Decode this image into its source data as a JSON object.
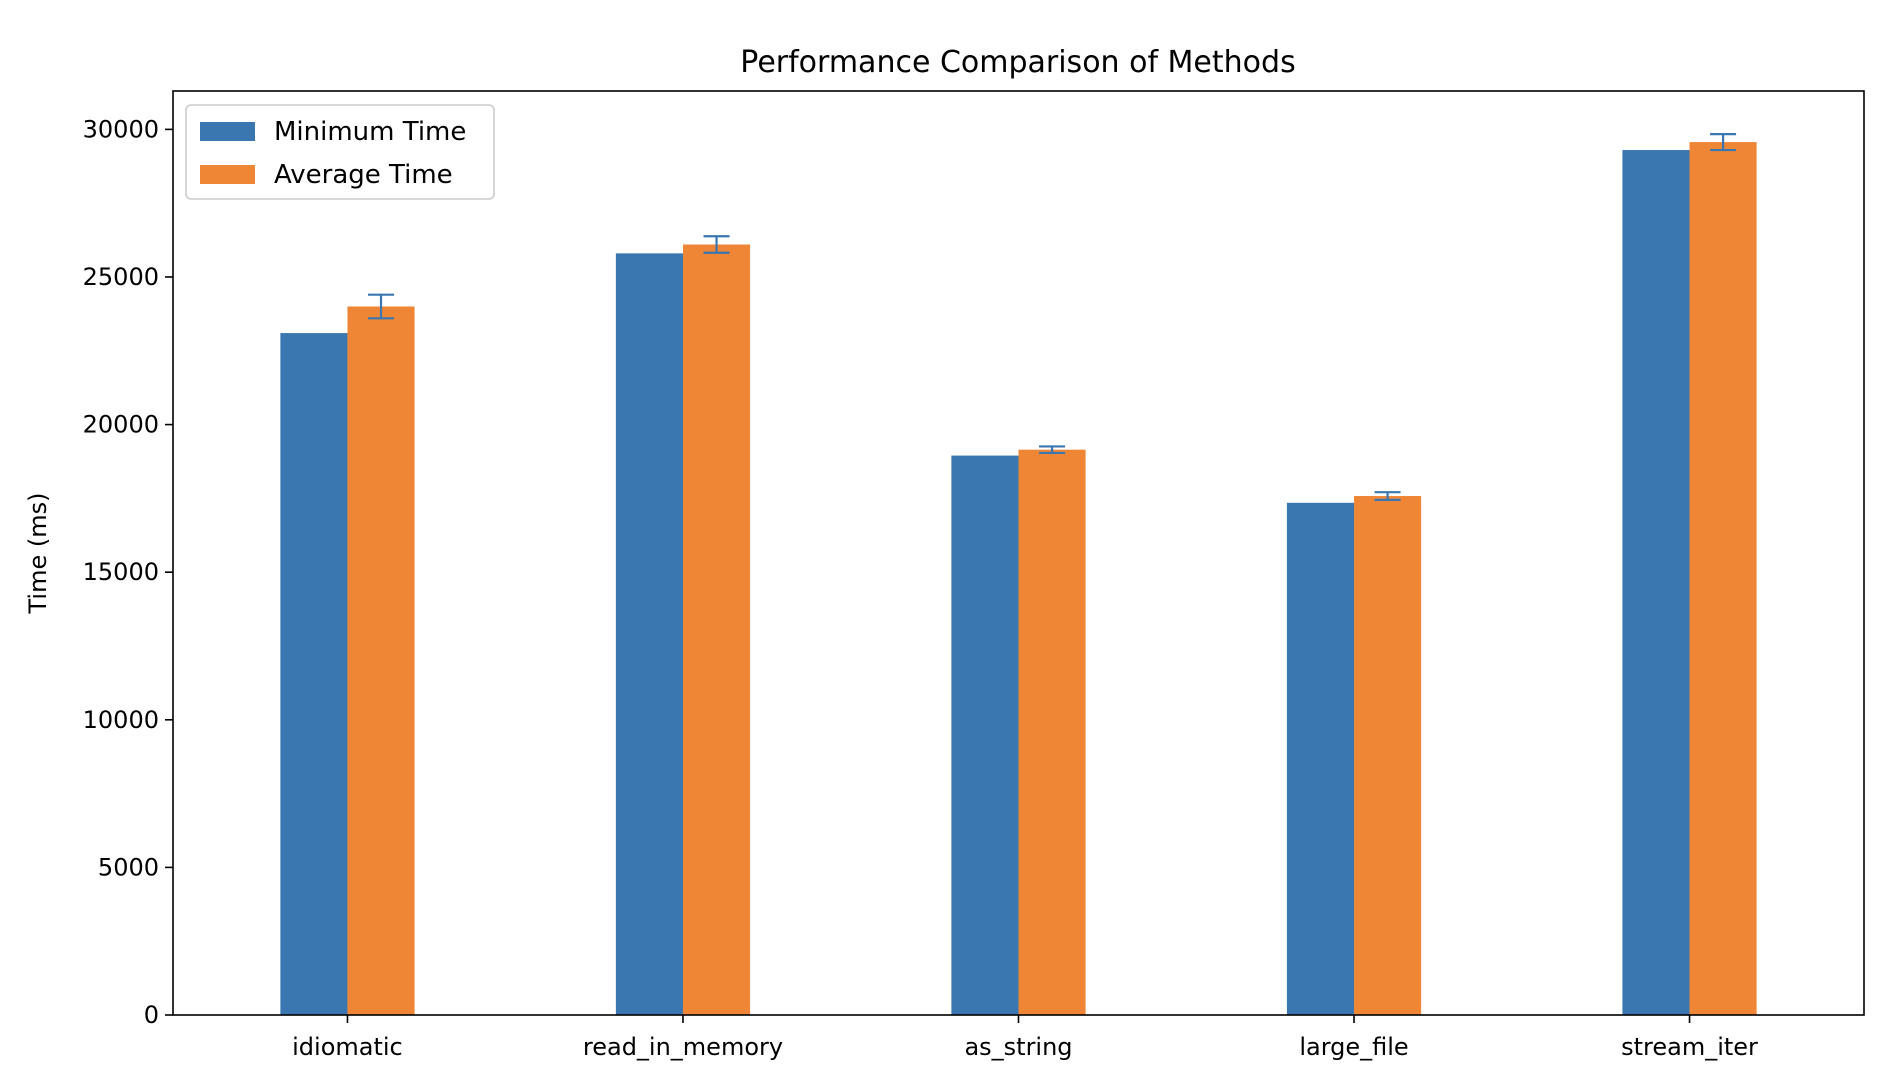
{
  "chart_data": {
    "type": "bar",
    "title": "Performance Comparison of Methods",
    "xlabel": "",
    "ylabel": "Time (ms)",
    "categories": [
      "idiomatic",
      "read_in_memory",
      "as_string",
      "large_file",
      "stream_iter"
    ],
    "series": [
      {
        "name": "Minimum Time",
        "color": "#3a76af",
        "values": [
          23100,
          25800,
          18950,
          17350,
          29300
        ]
      },
      {
        "name": "Average Time",
        "color": "#ef8636",
        "values": [
          24000,
          26100,
          19150,
          17580,
          29570
        ],
        "error": [
          400,
          280,
          110,
          130,
          270
        ],
        "error_color": "#3a76af"
      }
    ],
    "ylim": [
      0,
      31300
    ],
    "yticks": [
      0,
      5000,
      10000,
      15000,
      20000,
      25000,
      30000
    ],
    "ytick_labels": [
      "0",
      "5000",
      "10000",
      "15000",
      "20000",
      "25000",
      "30000"
    ],
    "legend_position": "upper-left",
    "grid": false
  }
}
